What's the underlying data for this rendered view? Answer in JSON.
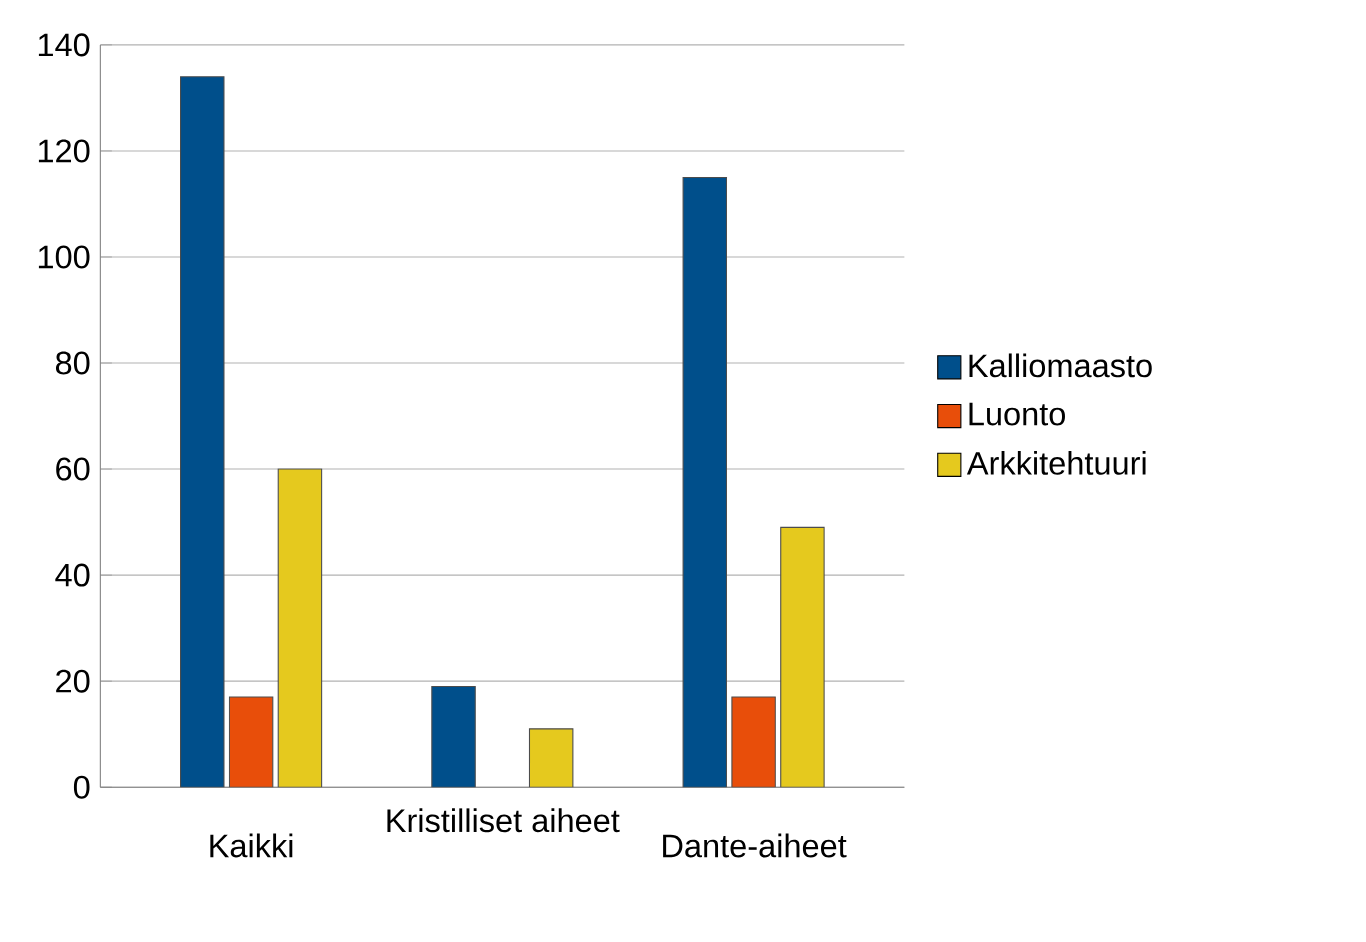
{
  "chart_data": {
    "type": "bar",
    "categories": [
      "Kaikki",
      "Kristilliset aiheet",
      "Dante-aiheet"
    ],
    "series": [
      {
        "name": "Kalliomaasto",
        "color": "#004f8b",
        "values": [
          134,
          19,
          115
        ]
      },
      {
        "name": "Luonto",
        "color": "#e84e0a",
        "values": [
          17,
          null,
          17
        ]
      },
      {
        "name": "Arkkitehtuuri",
        "color": "#e5c91e",
        "values": [
          60,
          11,
          49
        ]
      }
    ],
    "ylim": [
      0,
      140
    ],
    "yticks": [
      0,
      20,
      40,
      60,
      80,
      100,
      120,
      140
    ],
    "grid": "y",
    "legend": "right"
  }
}
